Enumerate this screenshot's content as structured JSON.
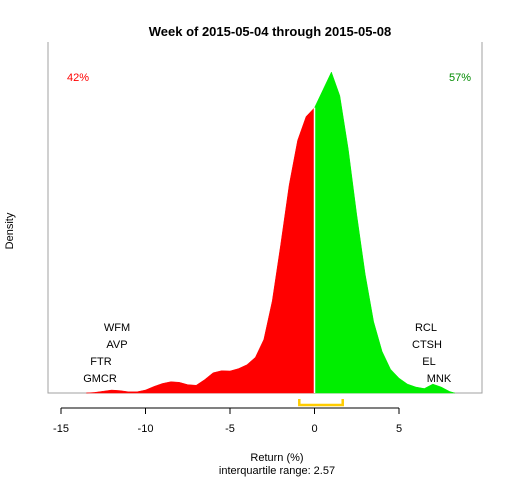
{
  "chart_data": {
    "type": "area",
    "title": "Week of 2015-05-04 through 2015-05-08",
    "xlabel": "Return (%)",
    "ylabel": "Density",
    "subtitle": "interquartile range: 2.57",
    "xlim": [
      -15,
      10
    ],
    "xticks": [
      "-15",
      "-10",
      "-5",
      "0",
      "5"
    ],
    "grid": false,
    "series": [
      {
        "side": "negative",
        "color": "#ff0000",
        "x": [
          -13.5,
          -13,
          -12.5,
          -12,
          -11.5,
          -11,
          -10.5,
          -10,
          -9.5,
          -9,
          -8.5,
          -8,
          -7.5,
          -7,
          -6.5,
          -6,
          -5.5,
          -5,
          -4.5,
          -4,
          -3.5,
          -3,
          -2.5,
          -2,
          -1.5,
          -1,
          -0.5,
          0
        ],
        "y": [
          0.0,
          0.002,
          0.006,
          0.01,
          0.008,
          0.004,
          0.004,
          0.01,
          0.022,
          0.032,
          0.038,
          0.036,
          0.028,
          0.026,
          0.045,
          0.068,
          0.075,
          0.074,
          0.082,
          0.095,
          0.12,
          0.18,
          0.31,
          0.5,
          0.7,
          0.85,
          0.93,
          0.96
        ]
      },
      {
        "side": "positive",
        "color": "#00ee00",
        "x": [
          0,
          0.5,
          1,
          1.5,
          2,
          2.5,
          3,
          3.5,
          4,
          4.5,
          5,
          5.5,
          6,
          6.5,
          7,
          7.5,
          8,
          8.3
        ],
        "y": [
          0.96,
          1.02,
          1.08,
          1.0,
          0.82,
          0.6,
          0.4,
          0.24,
          0.14,
          0.08,
          0.05,
          0.03,
          0.02,
          0.015,
          0.03,
          0.02,
          0.005,
          0.0
        ]
      }
    ],
    "left_percent": "42%",
    "right_percent": "57%",
    "left_tickers": [
      "WFM",
      "AVP",
      "FTR",
      "GMCR"
    ],
    "right_tickers": [
      "RCL",
      "CTSH",
      "EL",
      "MNK"
    ],
    "iqr": [
      -0.9,
      1.67
    ],
    "colors": {
      "negative": "#ff0000",
      "positive": "#00ee00",
      "negative_label": "#ff0000",
      "positive_label": "#008b00",
      "iqr_bracket": "#ffcc00"
    }
  }
}
